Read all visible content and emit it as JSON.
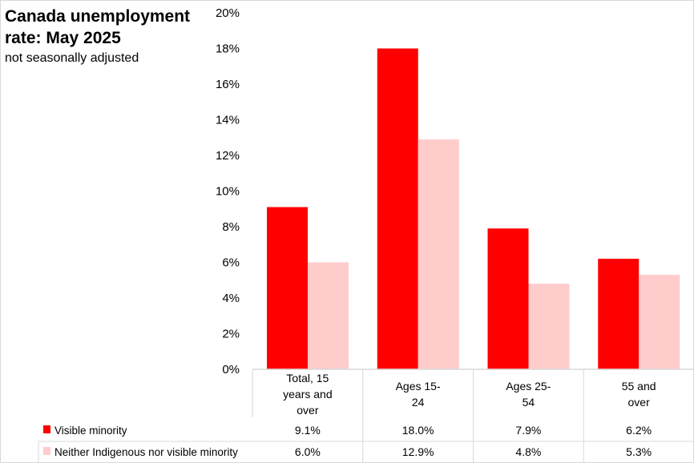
{
  "chart_data": {
    "type": "bar",
    "title": "Canada unemployment rate: May 2025",
    "subtitle": "not seasonally adjusted",
    "categories": [
      [
        "Total, 15",
        "years and",
        "over"
      ],
      [
        "Ages 15-",
        "24"
      ],
      [
        "Ages 25-",
        "54"
      ],
      [
        "55 and",
        "over"
      ]
    ],
    "series": [
      {
        "name": "Visible minority",
        "color": "#ff0000",
        "values": [
          9.1,
          18.0,
          7.9,
          6.2
        ],
        "labels": [
          "9.1%",
          "18.0%",
          "7.9%",
          "6.2%"
        ]
      },
      {
        "name": "Neither Indigenous nor visible minority",
        "color": "#ffcccc",
        "values": [
          6.0,
          12.9,
          4.8,
          5.3
        ],
        "labels": [
          "6.0%",
          "12.9%",
          "4.8%",
          "5.3%"
        ]
      }
    ],
    "ylim": [
      0,
      20
    ],
    "yticks": [
      "0%",
      "2%",
      "4%",
      "6%",
      "8%",
      "10%",
      "12%",
      "14%",
      "16%",
      "18%",
      "20%"
    ],
    "grid": false,
    "legend": "data-table"
  }
}
